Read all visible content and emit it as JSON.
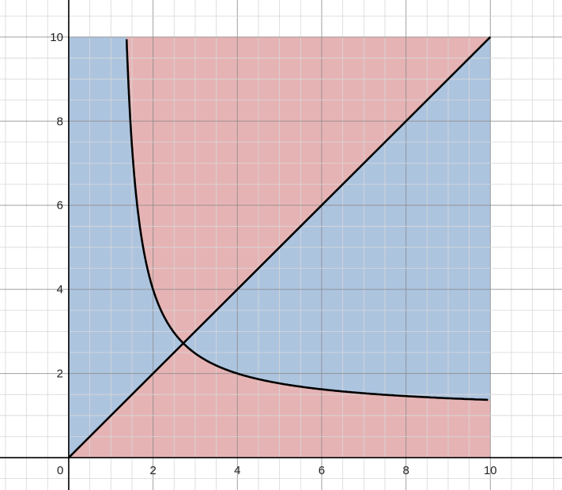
{
  "chart_data": {
    "type": "area",
    "title": "",
    "xlabel": "",
    "ylabel": "",
    "xlim": [
      -1.63,
      11.7
    ],
    "ylim": [
      -0.77,
      10.88
    ],
    "grid": true,
    "major_step": 2,
    "minor_step": 0.5,
    "x_ticks": [
      0,
      2,
      4,
      6,
      8,
      10
    ],
    "y_ticks": [
      2,
      4,
      6,
      8,
      10
    ],
    "origin_label": "0",
    "region": {
      "x": [
        0,
        10
      ],
      "y": [
        0,
        10
      ]
    },
    "series": [
      {
        "kind": "line",
        "equation": "y = x",
        "color": "#000000"
      },
      {
        "kind": "curve",
        "equation": "x^y = y^x (non-trivial branch)",
        "color": "#000000",
        "intersection": [
          2.718,
          2.718
        ]
      }
    ],
    "fills": [
      {
        "condition": "x^y < y^x",
        "color": "#adc4df"
      },
      {
        "condition": "x^y > y^x",
        "color": "#e6b3b4"
      }
    ],
    "axis_color": "#000000",
    "major_grid_color": "#8a8a8a",
    "minor_grid_color": "#d8d8d8"
  }
}
